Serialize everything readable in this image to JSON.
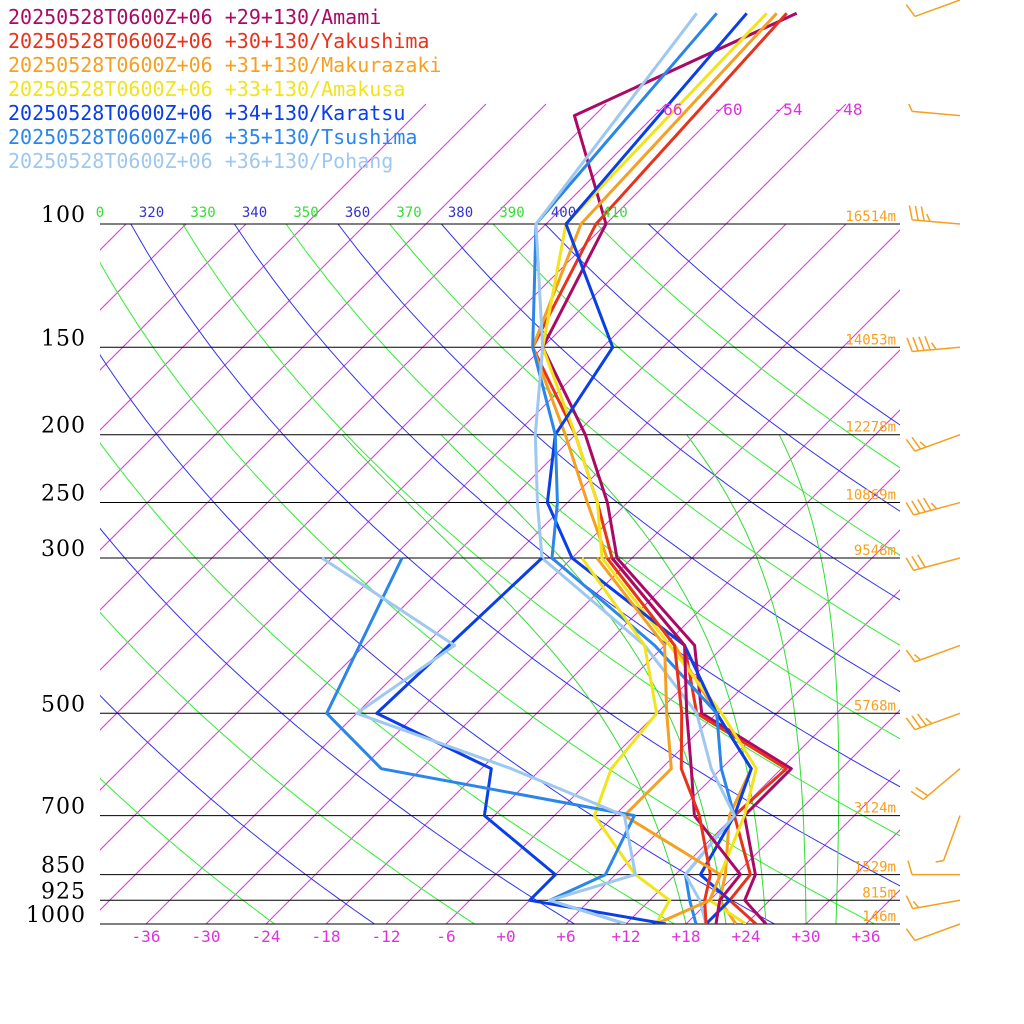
{
  "chart_data": {
    "type": "line",
    "title": "",
    "legend": [
      {
        "name": "20250528T0600Z+06 +29+130/Amami",
        "color": "#aa0a66"
      },
      {
        "name": "20250528T0600Z+06 +30+130/Yakushima",
        "color": "#e8331c"
      },
      {
        "name": "20250528T0600Z+06 +31+130/Makurazaki",
        "color": "#f5a020"
      },
      {
        "name": "20250528T0600Z+06 +33+130/Amakusa",
        "color": "#f2e41a"
      },
      {
        "name": "20250528T0600Z+06 +34+130/Karatsu",
        "color": "#0a3ee6"
      },
      {
        "name": "20250528T0600Z+06 +35+130/Tsushima",
        "color": "#2b86ea"
      },
      {
        "name": "20250528T0600Z+06 +36+130/Pohang",
        "color": "#9ec8f0"
      }
    ],
    "pressure_labels": [
      "100",
      "150",
      "200",
      "250",
      "300",
      "500",
      "700",
      "850",
      "925",
      "1000"
    ],
    "height_labels": [
      "16514m",
      "14053m",
      "12278m",
      "10869m",
      "9548m",
      "5768m",
      "3124m",
      "1529m",
      "815m",
      "146m"
    ],
    "temperature_ticks": [
      "-36",
      "-30",
      "-24",
      "-18",
      "-12",
      "-6",
      "+0",
      "+6",
      "+12",
      "+18",
      "+24",
      "+30",
      "+36"
    ],
    "theta_labels": [
      "0",
      "320",
      "330",
      "340",
      "350",
      "360",
      "370",
      "380",
      "390",
      "400",
      "410"
    ],
    "upper_isotherm_labels": [
      "-66",
      "-60",
      "-54",
      "-48"
    ],
    "pressure_levels_hpa": [
      1000,
      925,
      850,
      700,
      500,
      300,
      250,
      200,
      150,
      100
    ],
    "temperature_range_c": [
      -40,
      40
    ],
    "colors": {
      "isotherm": "#dd33dd",
      "dry_adiabat_green": "#33ee33",
      "dry_adiabat_blue": "#3333ee",
      "moist_adiabat": "#33dd33",
      "pressure_line": "#000000",
      "height_label": "#f5a020",
      "wind_barb": "#f5a020",
      "theta_green_label": "#33dd33",
      "theta_blue_label": "#3333cc"
    },
    "series": [
      {
        "name": "Amami",
        "color": "#aa0a66",
        "profile": [
          [
            1000,
            26.0
          ],
          [
            925,
            21.5
          ],
          [
            850,
            20.0
          ],
          [
            700,
            13.0
          ],
          [
            600,
            13.0
          ],
          [
            500,
            -1.5
          ],
          [
            400,
            -9.0
          ],
          [
            300,
            -25.5
          ],
          [
            250,
            -32.0
          ],
          [
            200,
            -41.0
          ],
          [
            150,
            -54.0
          ],
          [
            100,
            -60.0
          ],
          [
            70,
            -74.0
          ],
          [
            50,
            -62.0
          ]
        ]
      },
      {
        "name": "Yakushima",
        "color": "#e8331c",
        "profile": [
          [
            1000,
            25.0
          ],
          [
            925,
            20.0
          ],
          [
            850,
            19.5
          ],
          [
            700,
            12.0
          ],
          [
            600,
            12.5
          ],
          [
            500,
            -2.0
          ],
          [
            400,
            -10.0
          ],
          [
            300,
            -26.0
          ],
          [
            250,
            -33.0
          ],
          [
            200,
            -42.0
          ],
          [
            150,
            -55.0
          ],
          [
            100,
            -61.0
          ],
          [
            50,
            -63.0
          ]
        ]
      },
      {
        "name": "Makurazaki",
        "color": "#f5a020",
        "profile": [
          [
            1000,
            23.0
          ],
          [
            925,
            19.0
          ],
          [
            850,
            17.0
          ],
          [
            700,
            11.5
          ],
          [
            600,
            9.0
          ],
          [
            500,
            0.0
          ],
          [
            400,
            -11.0
          ],
          [
            300,
            -26.5
          ],
          [
            250,
            -34.0
          ],
          [
            200,
            -43.0
          ],
          [
            150,
            -55.0
          ],
          [
            100,
            -62.5
          ],
          [
            50,
            -64.0
          ]
        ]
      },
      {
        "name": "Amakusa",
        "color": "#f2e41a",
        "profile": [
          [
            1000,
            24.0
          ],
          [
            925,
            18.0
          ],
          [
            850,
            16.5
          ],
          [
            700,
            13.0
          ],
          [
            600,
            9.5
          ],
          [
            500,
            0.5
          ],
          [
            400,
            -11.5
          ],
          [
            300,
            -27.0
          ],
          [
            250,
            -33.0
          ],
          [
            200,
            -42.0
          ],
          [
            150,
            -54.0
          ],
          [
            100,
            -64.0
          ],
          [
            50,
            -65.0
          ]
        ]
      },
      {
        "name": "Karatsu",
        "color": "#0a3ee6",
        "profile": [
          [
            1000,
            20.0
          ],
          [
            925,
            20.0
          ],
          [
            850,
            14.5
          ],
          [
            700,
            12.0
          ],
          [
            600,
            9.0
          ],
          [
            500,
            0.0
          ],
          [
            400,
            -10.0
          ],
          [
            300,
            -30.0
          ],
          [
            250,
            -38.0
          ],
          [
            200,
            -44.0
          ],
          [
            150,
            -47.0
          ],
          [
            100,
            -64.0
          ],
          [
            50,
            -67.0
          ]
        ]
      },
      {
        "name": "Tsushima",
        "color": "#2b86ea",
        "profile": [
          [
            1000,
            19.0
          ],
          [
            925,
            16.0
          ],
          [
            850,
            13.0
          ],
          [
            700,
            12.0
          ],
          [
            600,
            6.0
          ],
          [
            500,
            0.0
          ],
          [
            400,
            -13.0
          ],
          [
            300,
            -32.0
          ],
          [
            250,
            -37.0
          ],
          [
            200,
            -44.0
          ],
          [
            150,
            -55.0
          ],
          [
            100,
            -67.0
          ],
          [
            50,
            -70.0
          ]
        ]
      },
      {
        "name": "Pohang",
        "color": "#9ec8f0",
        "profile": [
          [
            1000,
            20.0
          ],
          [
            925,
            17.0
          ],
          [
            850,
            13.0
          ],
          [
            700,
            12.0
          ],
          [
            600,
            5.0
          ],
          [
            500,
            -2.0
          ],
          [
            400,
            -14.0
          ],
          [
            300,
            -33.0
          ],
          [
            250,
            -39.0
          ],
          [
            200,
            -46.0
          ],
          [
            150,
            -54.0
          ],
          [
            100,
            -67.0
          ],
          [
            50,
            -72.0
          ]
        ]
      },
      {
        "name": "Amami dewpoint",
        "color": "#aa0a66",
        "profile": [
          [
            1000,
            21.0
          ],
          [
            925,
            19.0
          ],
          [
            850,
            18.5
          ],
          [
            700,
            8.0
          ],
          [
            600,
            3.0
          ],
          [
            500,
            -3.0
          ],
          [
            400,
            -10.0
          ],
          [
            300,
            -26.0
          ]
        ]
      },
      {
        "name": "Yakushima dewpoint",
        "color": "#e8331c",
        "profile": [
          [
            1000,
            20.0
          ],
          [
            925,
            17.5
          ],
          [
            850,
            15.5
          ],
          [
            700,
            8.5
          ],
          [
            600,
            2.0
          ],
          [
            500,
            -3.5
          ],
          [
            400,
            -11.0
          ],
          [
            300,
            -26.5
          ]
        ]
      },
      {
        "name": "Makurazaki dewpoint",
        "color": "#f5a020",
        "profile": [
          [
            1000,
            15.0
          ],
          [
            925,
            18.0
          ],
          [
            850,
            16.5
          ],
          [
            700,
            1.0
          ],
          [
            600,
            1.0
          ],
          [
            500,
            -5.0
          ],
          [
            400,
            -12.0
          ],
          [
            300,
            -27.5
          ]
        ]
      },
      {
        "name": "Amakusa dewpoint",
        "color": "#f2e41a",
        "profile": [
          [
            1000,
            15.0
          ],
          [
            925,
            14.0
          ],
          [
            850,
            8.0
          ],
          [
            700,
            -2.0
          ],
          [
            600,
            -5.0
          ],
          [
            500,
            -6.0
          ],
          [
            400,
            -14.0
          ],
          [
            300,
            -29.0
          ]
        ]
      },
      {
        "name": "Karatsu dewpoint",
        "color": "#0a3ee6",
        "profile": [
          [
            1000,
            16.0
          ],
          [
            925,
            0.0
          ],
          [
            850,
            0.0
          ],
          [
            700,
            -13.0
          ],
          [
            600,
            -17.0
          ],
          [
            500,
            -34.0
          ],
          [
            300,
            -33.0
          ]
        ]
      },
      {
        "name": "Tsushima dewpoint",
        "color": "#2b86ea",
        "profile": [
          [
            1000,
            12.0
          ],
          [
            925,
            2.0
          ],
          [
            850,
            5.0
          ],
          [
            700,
            2.0
          ],
          [
            600,
            -28.0
          ],
          [
            500,
            -39.0
          ],
          [
            300,
            -47.0
          ]
        ]
      },
      {
        "name": "Pohang dewpoint",
        "color": "#9ec8f0",
        "profile": [
          [
            1000,
            12.0
          ],
          [
            925,
            2.0
          ],
          [
            850,
            8.0
          ],
          [
            700,
            1.0
          ],
          [
            600,
            -15.0
          ],
          [
            500,
            -36.0
          ],
          [
            400,
            -33.0
          ],
          [
            300,
            -55.0
          ]
        ]
      }
    ],
    "wind_barbs": [
      {
        "pressure": 1000,
        "direction_deg": 250,
        "speed_kt": 10
      },
      {
        "pressure": 925,
        "direction_deg": 260,
        "speed_kt": 15
      },
      {
        "pressure": 850,
        "direction_deg": 270,
        "speed_kt": 10
      },
      {
        "pressure": 700,
        "direction_deg": 200,
        "speed_kt": 5
      },
      {
        "pressure": 600,
        "direction_deg": 230,
        "speed_kt": 20
      },
      {
        "pressure": 500,
        "direction_deg": 250,
        "speed_kt": 35
      },
      {
        "pressure": 400,
        "direction_deg": 250,
        "speed_kt": 15
      },
      {
        "pressure": 300,
        "direction_deg": 255,
        "speed_kt": 30
      },
      {
        "pressure": 250,
        "direction_deg": 255,
        "speed_kt": 45
      },
      {
        "pressure": 200,
        "direction_deg": 250,
        "speed_kt": 25
      },
      {
        "pressure": 150,
        "direction_deg": 265,
        "speed_kt": 45
      },
      {
        "pressure": 100,
        "direction_deg": 275,
        "speed_kt": 35
      },
      {
        "pressure": 70,
        "direction_deg": 275,
        "speed_kt": 5
      },
      {
        "pressure": 40,
        "direction_deg": 250,
        "speed_kt": 10
      }
    ]
  }
}
